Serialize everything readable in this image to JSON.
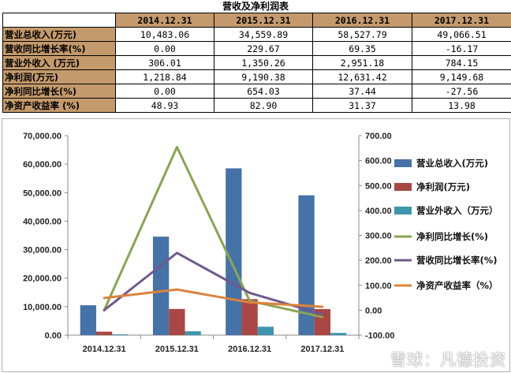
{
  "table": {
    "title": "营收及净利润表",
    "headers": [
      "2014.12.31",
      "2015.12.31",
      "2016.12.31",
      "2017.12.31"
    ],
    "rows": [
      {
        "label": "营业总收入(万元)",
        "values": [
          "10,483.06",
          "34,559.89",
          "58,527.79",
          "49,066.51"
        ]
      },
      {
        "label": "营收同比增长率(%)",
        "values": [
          "0.00",
          "229.67",
          "69.35",
          "-16.17"
        ]
      },
      {
        "label": "营业外收入 (万元)",
        "values": [
          "306.01",
          "1,350.26",
          "2,951.18",
          "784.15"
        ]
      },
      {
        "label": "净利润(万元)",
        "values": [
          "1,218.84",
          "9,190.38",
          "12,631.42",
          "9,149.68"
        ]
      },
      {
        "label": "净利同比增长(%)",
        "values": [
          "0.00",
          "654.03",
          "37.44",
          "-27.56"
        ]
      },
      {
        "label": "净资产收益率 (%)",
        "values": [
          "48.93",
          "82.90",
          "31.37",
          "13.98"
        ]
      }
    ]
  },
  "chart_data": {
    "type": "bar",
    "categories": [
      "2014.12.31",
      "2015.12.31",
      "2016.12.31",
      "2017.12.31"
    ],
    "left_axis": {
      "min": 0,
      "max": 70000,
      "step": 10000,
      "tick_labels": [
        "0.00",
        "10,000.00",
        "20,000.00",
        "30,000.00",
        "40,000.00",
        "50,000.00",
        "60,000.00",
        "70,000.00"
      ]
    },
    "right_axis": {
      "min": -100,
      "max": 700,
      "step": 100,
      "tick_labels": [
        "-100.00",
        "0.00",
        "100.00",
        "200.00",
        "300.00",
        "400.00",
        "500.00",
        "600.00",
        "700.00"
      ]
    },
    "series": [
      {
        "name": "营业总收入(万元)",
        "kind": "bar",
        "axis": "left",
        "color": "#4572a7",
        "values": [
          10483.06,
          34559.89,
          58527.79,
          49066.51
        ]
      },
      {
        "name": "净利润(万元)",
        "kind": "bar",
        "axis": "left",
        "color": "#aa4643",
        "values": [
          1218.84,
          9190.38,
          12631.42,
          9149.68
        ]
      },
      {
        "name": "营业外收入（万元）",
        "kind": "bar",
        "axis": "left",
        "color": "#3d96ae",
        "values": [
          306.01,
          1350.26,
          2951.18,
          784.15
        ]
      },
      {
        "name": "净利同比增长(%)",
        "kind": "line",
        "axis": "right",
        "color": "#89a54e",
        "values": [
          0.0,
          654.03,
          37.44,
          -27.56
        ]
      },
      {
        "name": "营收同比增长率(%)",
        "kind": "line",
        "axis": "right",
        "color": "#71588f",
        "values": [
          0.0,
          229.67,
          69.35,
          -16.17
        ]
      },
      {
        "name": "净资产收益率（%）",
        "kind": "line",
        "axis": "right",
        "color": "#db843d",
        "values": [
          48.93,
          82.9,
          31.37,
          13.98
        ]
      }
    ],
    "legend": {
      "position": "right",
      "items": [
        "营业总收入(万元)",
        "净利润(万元)",
        "营业外收入（万元）",
        "净利同比增长(%)",
        "营收同比增长率(%)",
        "净资产收益率（%）"
      ]
    }
  },
  "watermark": "雪球：凡德投资"
}
